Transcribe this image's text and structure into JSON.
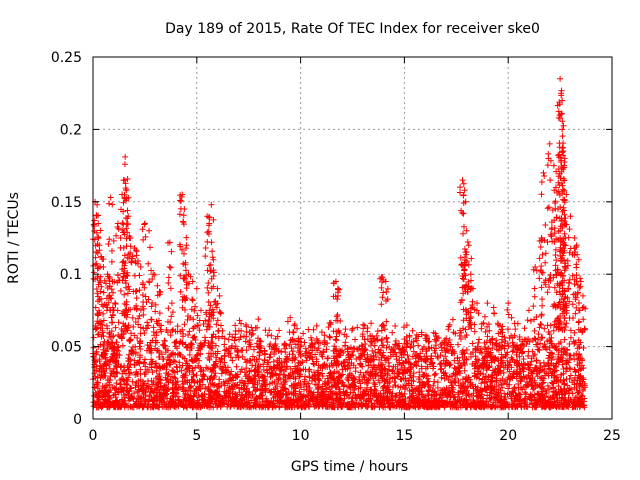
{
  "chart_data": {
    "type": "scatter",
    "title": "Day 189 of 2015, Rate Of TEC Index for receiver ske0",
    "xlabel": "GPS time / hours",
    "ylabel": "ROTI / TECUs",
    "xlim": [
      0,
      25
    ],
    "ylim": [
      0,
      0.25
    ],
    "xticks": [
      "0",
      "5",
      "10",
      "15",
      "20",
      "25"
    ],
    "yticks": [
      "0",
      "0.05",
      "0.1",
      "0.15",
      "0.2",
      "0.25"
    ],
    "grid": true,
    "marker": "+",
    "color": "#ff0000",
    "x_range_of_points": [
      0,
      23.7
    ],
    "baseline_band": [
      0.008,
      0.06
    ],
    "series": [
      {
        "values": [
          [
            0.1,
            0.15
          ],
          [
            0.2,
            0.148
          ],
          [
            0.25,
            0.135
          ],
          [
            0.3,
            0.12
          ],
          [
            0.4,
            0.112
          ],
          [
            0.5,
            0.105
          ],
          [
            0.7,
            0.1
          ],
          [
            0.8,
            0.098
          ],
          [
            0.85,
            0.153
          ],
          [
            1.0,
            0.123
          ],
          [
            1.2,
            0.135
          ],
          [
            1.4,
            0.155
          ],
          [
            1.5,
            0.165
          ],
          [
            1.55,
            0.181
          ],
          [
            1.6,
            0.158
          ],
          [
            1.7,
            0.14
          ],
          [
            1.8,
            0.125
          ],
          [
            2.0,
            0.118
          ],
          [
            2.1,
            0.113
          ],
          [
            2.3,
            0.105
          ],
          [
            2.5,
            0.135
          ],
          [
            2.7,
            0.13
          ],
          [
            2.9,
            0.1
          ],
          [
            3.1,
            0.092
          ],
          [
            3.2,
            0.088
          ],
          [
            3.7,
            0.122
          ],
          [
            3.8,
            0.08
          ],
          [
            4.3,
            0.155
          ],
          [
            4.4,
            0.145
          ],
          [
            4.5,
            0.12
          ],
          [
            4.6,
            0.1
          ],
          [
            4.8,
            0.095
          ],
          [
            5.0,
            0.09
          ],
          [
            5.2,
            0.075
          ],
          [
            5.5,
            0.14
          ],
          [
            5.6,
            0.135
          ],
          [
            5.7,
            0.148
          ],
          [
            5.8,
            0.11
          ],
          [
            6.0,
            0.09
          ],
          [
            6.1,
            0.085
          ],
          [
            9.5,
            0.07
          ],
          [
            11.7,
            0.095
          ],
          [
            11.8,
            0.09
          ],
          [
            11.8,
            0.085
          ],
          [
            13.9,
            0.098
          ],
          [
            14.0,
            0.096
          ],
          [
            14.1,
            0.095
          ],
          [
            17.8,
            0.165
          ],
          [
            17.9,
            0.158
          ],
          [
            17.95,
            0.15
          ],
          [
            18.0,
            0.13
          ],
          [
            18.1,
            0.12
          ],
          [
            18.2,
            0.1
          ],
          [
            18.3,
            0.09
          ],
          [
            18.5,
            0.08
          ],
          [
            19.0,
            0.08
          ],
          [
            19.3,
            0.077
          ],
          [
            20.0,
            0.08
          ],
          [
            21.0,
            0.075
          ],
          [
            21.3,
            0.105
          ],
          [
            21.6,
            0.125
          ],
          [
            21.7,
            0.17
          ],
          [
            22.0,
            0.19
          ],
          [
            22.2,
            0.175
          ],
          [
            22.3,
            0.16
          ],
          [
            22.4,
            0.145
          ],
          [
            22.5,
            0.235
          ],
          [
            22.55,
            0.225
          ],
          [
            22.6,
            0.22
          ],
          [
            22.6,
            0.2
          ],
          [
            22.65,
            0.185
          ],
          [
            22.7,
            0.175
          ],
          [
            22.8,
            0.155
          ],
          [
            23.0,
            0.14
          ],
          [
            23.2,
            0.125
          ],
          [
            23.3,
            0.12
          ],
          [
            23.4,
            0.11
          ],
          [
            23.5,
            0.095
          ],
          [
            23.6,
            0.085
          ]
        ]
      }
    ]
  }
}
